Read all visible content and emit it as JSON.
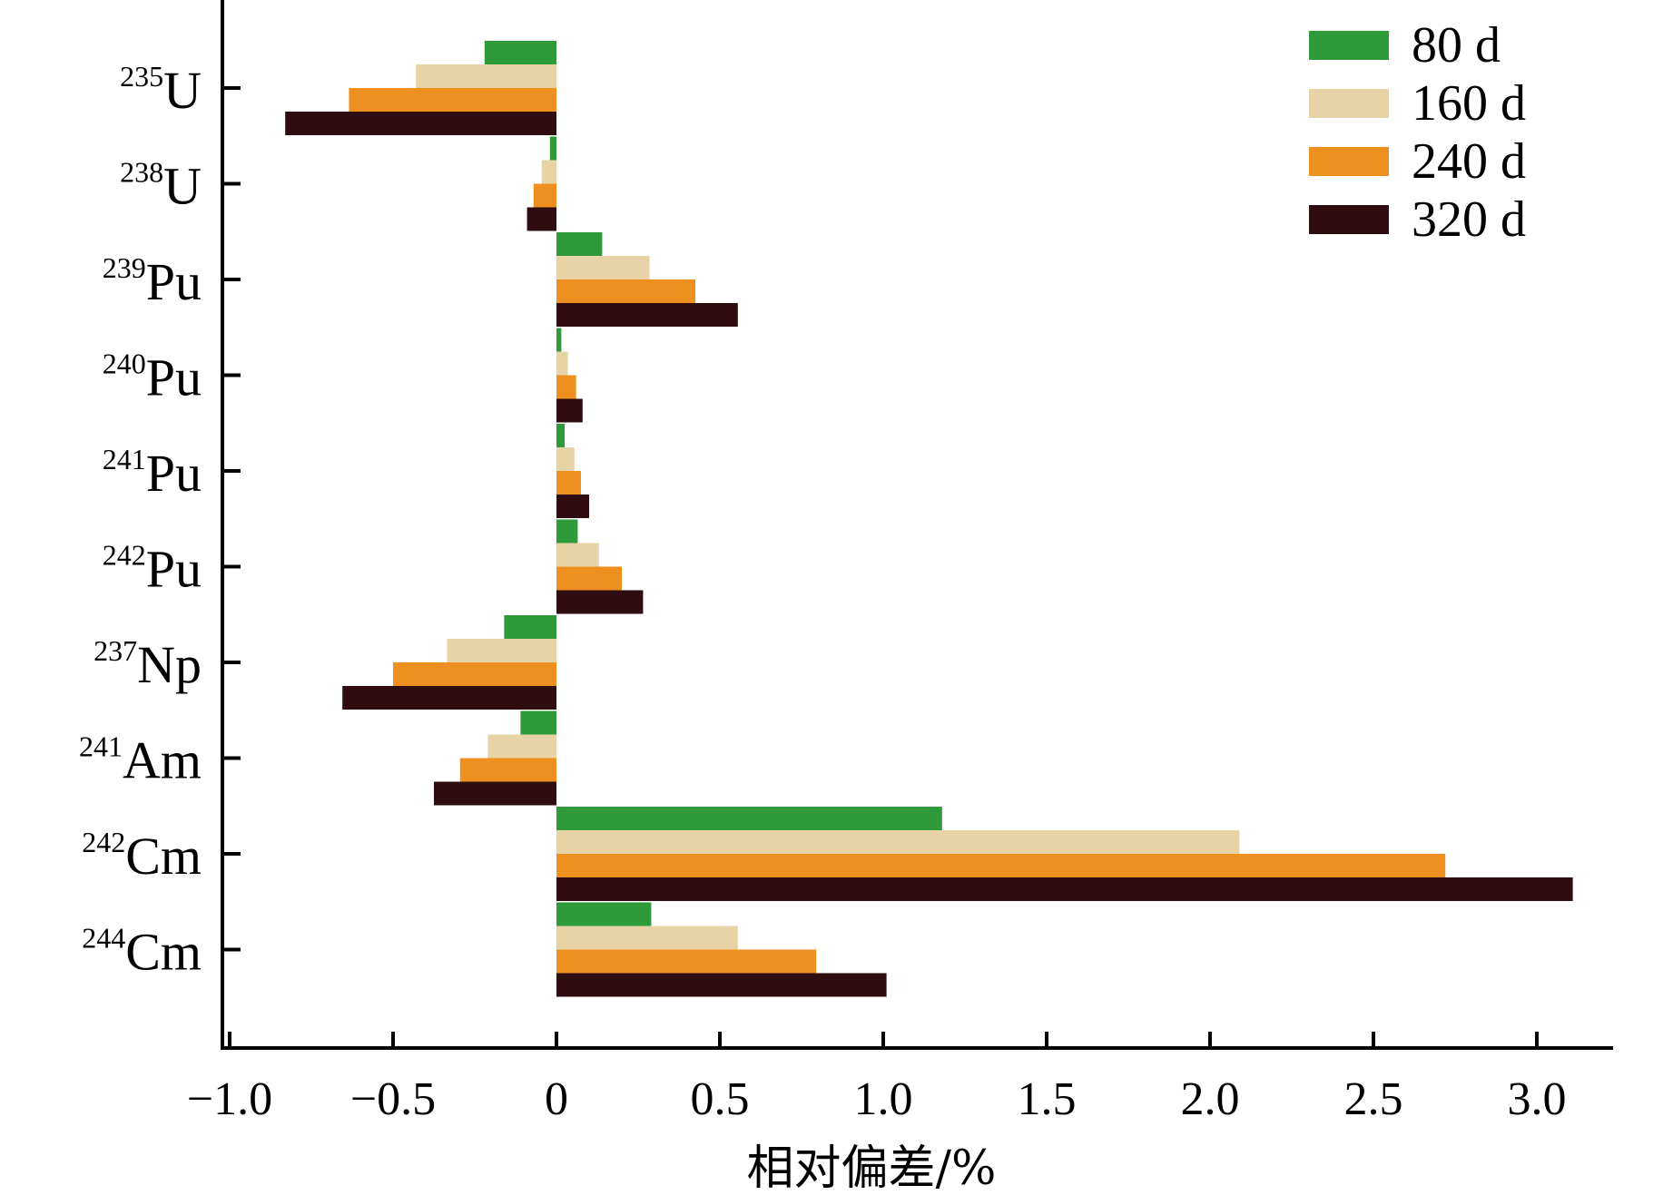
{
  "chart_data": {
    "type": "bar",
    "orientation": "horizontal",
    "title": "",
    "xlabel": "相对偏差/%",
    "ylabel": "",
    "xlim": [
      -1.0,
      3.1
    ],
    "x_ticks": [
      -1.0,
      -0.5,
      0,
      0.5,
      1.0,
      1.5,
      2.0,
      2.5,
      3.0
    ],
    "x_tick_labels": [
      "−1.0",
      "−0.5",
      "0",
      "0.5",
      "1.0",
      "1.5",
      "2.0",
      "2.5",
      "3.0"
    ],
    "grid": false,
    "legend_position": "top-right",
    "categories": [
      {
        "mass": "235",
        "element": "U"
      },
      {
        "mass": "238",
        "element": "U"
      },
      {
        "mass": "239",
        "element": "Pu"
      },
      {
        "mass": "240",
        "element": "Pu"
      },
      {
        "mass": "241",
        "element": "Pu"
      },
      {
        "mass": "242",
        "element": "Pu"
      },
      {
        "mass": "237",
        "element": "Np"
      },
      {
        "mass": "241",
        "element": "Am"
      },
      {
        "mass": "242",
        "element": "Cm"
      },
      {
        "mass": "244",
        "element": "Cm"
      }
    ],
    "series": [
      {
        "name": "80 d",
        "color": "#2e9a3a",
        "values": [
          -0.22,
          -0.02,
          0.14,
          0.015,
          0.025,
          0.065,
          -0.16,
          -0.11,
          1.18,
          0.29
        ]
      },
      {
        "name": "160 d",
        "color": "#e8d3a6",
        "values": [
          -0.43,
          -0.045,
          0.285,
          0.035,
          0.055,
          0.13,
          -0.335,
          -0.21,
          2.09,
          0.555
        ]
      },
      {
        "name": "240 d",
        "color": "#ee9020",
        "values": [
          -0.635,
          -0.07,
          0.425,
          0.06,
          0.075,
          0.2,
          -0.5,
          -0.295,
          2.72,
          0.795
        ]
      },
      {
        "name": "320 d",
        "color": "#2e0c10",
        "values": [
          -0.83,
          -0.09,
          0.555,
          0.08,
          0.1,
          0.265,
          -0.655,
          -0.375,
          3.11,
          1.01
        ]
      }
    ]
  }
}
